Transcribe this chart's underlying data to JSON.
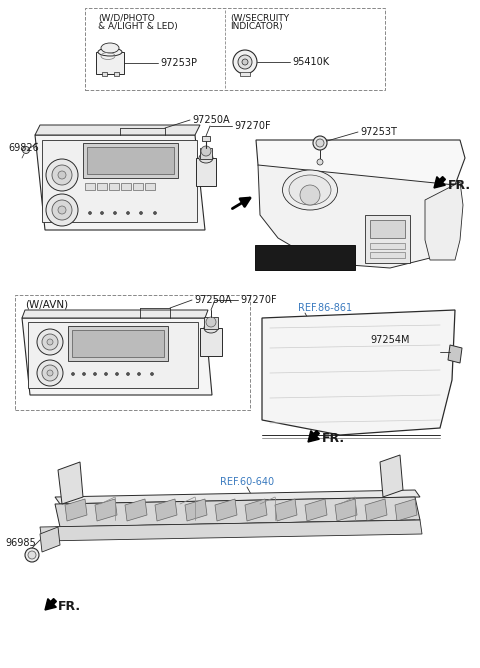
{
  "bg_color": "#ffffff",
  "line_color": "#2a2a2a",
  "text_color": "#1a1a1a",
  "ref_text_color": "#3a7abf",
  "dashed_color": "#888888",
  "parts": {
    "97253P": "97253P",
    "95410K": "95410K",
    "97253T": "97253T",
    "97250A_1": "97250A",
    "97270F_1": "97270F",
    "69826": "69826",
    "97250A_2": "97250A",
    "97270F_2": "97270F",
    "97254M": "97254M",
    "96985": "96985",
    "REF86": "REF.86-861",
    "REF60": "REF.60-640"
  },
  "box1_line1": "(W/D/PHOTO",
  "box1_line2": "& A/LIGHT & LED)",
  "box2_line1": "(W/SECRUITY",
  "box2_line2": "INDICATOR)",
  "box3_label": "(W/AVN)",
  "fr_label": "FR."
}
